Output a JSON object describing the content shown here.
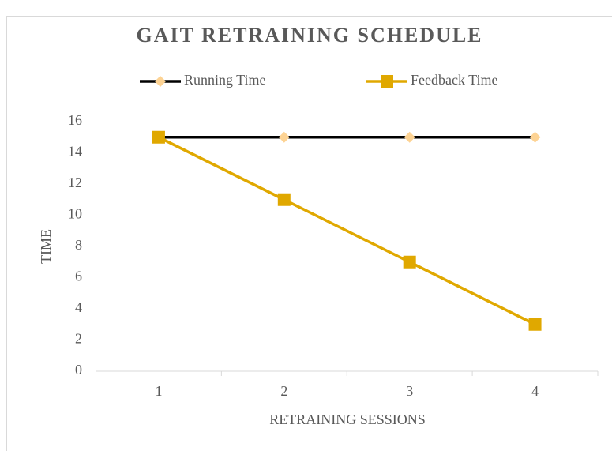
{
  "chart_data": {
    "type": "line",
    "title": "GAIT RETRAINING SCHEDULE",
    "x_label": "RETRAINING SESSIONS",
    "y_label": "TIME",
    "categories": [
      1,
      2,
      3,
      4
    ],
    "series": [
      {
        "name": "Running Time",
        "color": "#000000",
        "marker_color": "#fdd394",
        "marker": "diamond",
        "values": [
          15,
          15,
          15,
          15
        ]
      },
      {
        "name": "Feedback Time",
        "color": "#e0a800",
        "marker_color": "#e0a800",
        "marker": "square",
        "values": [
          15,
          11,
          7,
          3
        ]
      }
    ],
    "ylim": [
      0,
      16
    ],
    "yticks": [
      0,
      2,
      4,
      6,
      8,
      10,
      12,
      14,
      16
    ],
    "grid": false,
    "legend": "top"
  }
}
